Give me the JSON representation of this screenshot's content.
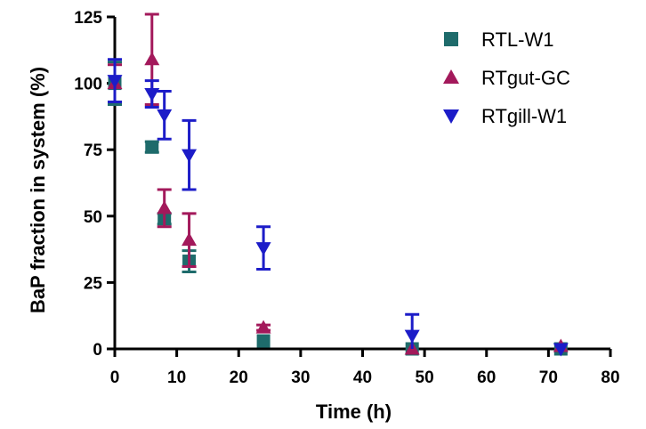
{
  "chart_data": {
    "type": "scatter",
    "title": "",
    "xlabel": "Time (h)",
    "ylabel": "BaP fraction in system (%)",
    "xlim": [
      0,
      80
    ],
    "ylim": [
      0,
      125
    ],
    "x_ticks": [
      0,
      10,
      20,
      30,
      40,
      50,
      60,
      70,
      80
    ],
    "y_ticks": [
      0,
      25,
      50,
      75,
      100,
      125
    ],
    "grid": false,
    "legend_position": "top-right",
    "series": [
      {
        "name": "RTL-W1",
        "marker": "square",
        "color": "#1e6b6b",
        "points": [
          {
            "x": 0,
            "y": 100,
            "err": 8
          },
          {
            "x": 6,
            "y": 76,
            "err": 2
          },
          {
            "x": 8,
            "y": 49,
            "err": 2
          },
          {
            "x": 12,
            "y": 33,
            "err": 4
          },
          {
            "x": 24,
            "y": 3,
            "err": 0.5
          },
          {
            "x": 48,
            "y": 0,
            "err": 0.3
          },
          {
            "x": 72,
            "y": 0,
            "err": 0.3
          }
        ]
      },
      {
        "name": "RTgut-GC",
        "marker": "triangle-up",
        "color": "#a3195b",
        "points": [
          {
            "x": 0,
            "y": 100,
            "err": 7
          },
          {
            "x": 6,
            "y": 109,
            "err": 17
          },
          {
            "x": 8,
            "y": 53,
            "err": 7
          },
          {
            "x": 12,
            "y": 41,
            "err": 10
          },
          {
            "x": 24,
            "y": 8,
            "err": 1
          },
          {
            "x": 48,
            "y": 0,
            "err": 0.3
          },
          {
            "x": 72,
            "y": 1,
            "err": 0.5
          }
        ]
      },
      {
        "name": "RTgill-W1",
        "marker": "triangle-down",
        "color": "#1c1cc8",
        "points": [
          {
            "x": 0,
            "y": 101,
            "err": 8
          },
          {
            "x": 6,
            "y": 96,
            "err": 5
          },
          {
            "x": 8,
            "y": 88,
            "err": 9
          },
          {
            "x": 12,
            "y": 73,
            "err": 13
          },
          {
            "x": 24,
            "y": 38,
            "err": 8
          },
          {
            "x": 48,
            "y": 5,
            "err": 8
          },
          {
            "x": 72,
            "y": 0,
            "err": 0.3
          }
        ]
      }
    ]
  }
}
